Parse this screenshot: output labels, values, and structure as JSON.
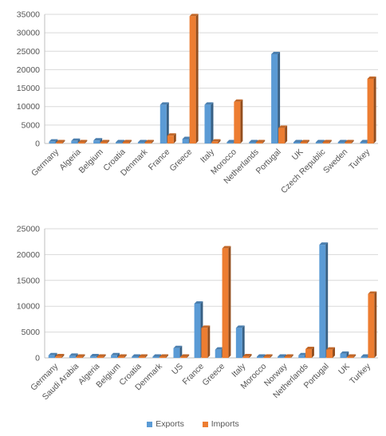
{
  "colors": {
    "exports": "#5b9bd5",
    "imports": "#ed7d31",
    "grid": "#d9d9d9",
    "axis": "#bfbfbf"
  },
  "legend": {
    "exports": "Exports",
    "imports": "Imports"
  },
  "chart_data": [
    {
      "type": "bar",
      "style": "3d-clustered-column",
      "title": "",
      "xlabel": "",
      "ylabel": "",
      "ylim": [
        0,
        35000
      ],
      "yticks": [
        0,
        5000,
        10000,
        15000,
        20000,
        25000,
        30000,
        35000
      ],
      "grid": true,
      "legend": "bottom",
      "categories": [
        "Germany",
        "Algeria",
        "Belgium",
        "Croatia",
        "Denmark",
        "France",
        "Greece",
        "Italy",
        "Morocco",
        "Netherlands",
        "Portugal",
        "UK",
        "Czech Republic",
        "Sweden",
        "Turkey"
      ],
      "series": [
        {
          "name": "Exports",
          "values": [
            500,
            700,
            800,
            100,
            100,
            10500,
            1200,
            10500,
            100,
            200,
            24200,
            300,
            100,
            100,
            100
          ]
        },
        {
          "name": "Imports",
          "values": [
            300,
            200,
            300,
            100,
            200,
            2100,
            34500,
            500,
            11300,
            300,
            4200,
            200,
            300,
            200,
            17500
          ]
        }
      ]
    },
    {
      "type": "bar",
      "style": "3d-clustered-column",
      "title": "",
      "xlabel": "",
      "ylabel": "",
      "ylim": [
        0,
        25000
      ],
      "yticks": [
        0,
        5000,
        10000,
        15000,
        20000,
        25000
      ],
      "grid": true,
      "legend": "bottom",
      "categories": [
        "Germany",
        "Saudi Arabia",
        "Algeria",
        "Belgium",
        "Croatia",
        "Denmark",
        "US",
        "France",
        "Greece",
        "Italy",
        "Morocco",
        "Norway",
        "Netherlands",
        "Portugal",
        "UK",
        "Turkey"
      ],
      "series": [
        {
          "name": "Exports",
          "values": [
            500,
            400,
            300,
            500,
            100,
            100,
            1900,
            10500,
            1600,
            5800,
            100,
            200,
            500,
            21900,
            800,
            100
          ]
        },
        {
          "name": "Imports",
          "values": [
            300,
            100,
            100,
            200,
            100,
            200,
            100,
            5800,
            21200,
            300,
            200,
            200,
            1700,
            1600,
            100,
            12400
          ]
        }
      ]
    }
  ]
}
